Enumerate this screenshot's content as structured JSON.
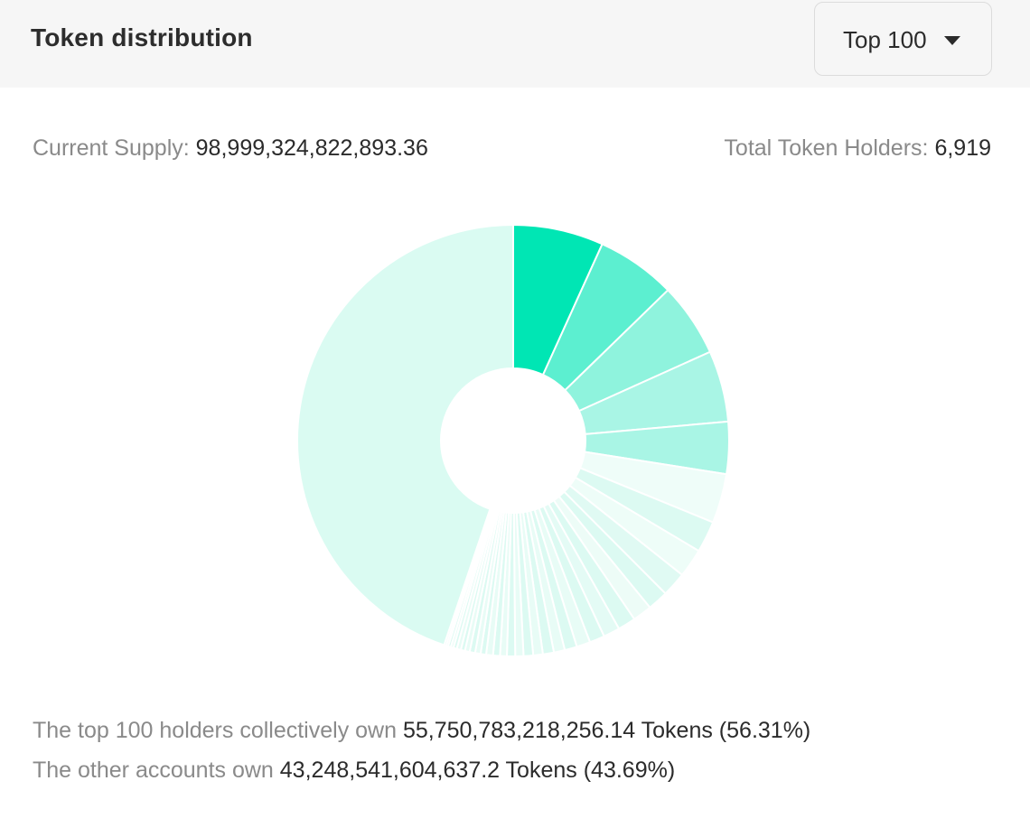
{
  "header": {
    "title": "Token distribution",
    "dropdown": {
      "selected": "Top 100",
      "caret_icon": "caret-down-icon"
    }
  },
  "stats": {
    "supply_label": "Current Supply:",
    "supply_value": "98,999,324,822,893.36",
    "holders_label": "Total Token Holders:",
    "holders_value": "6,919"
  },
  "chart_data": {
    "type": "pie",
    "variant": "donut",
    "labels_shown": false,
    "series": [
      {
        "values": [
          6.6,
          5.8,
          5.4,
          5.2,
          3.8,
          3.6,
          2.3,
          2.1,
          1.8,
          1.5,
          1.4,
          1.3,
          1.2,
          1.1,
          1.0,
          0.9,
          0.8,
          0.8,
          0.7,
          0.7,
          0.6,
          0.6,
          0.5,
          0.5,
          0.5,
          0.4,
          0.4,
          0.4,
          0.35,
          0.3,
          0.3,
          0.25,
          0.2,
          0.2,
          0.15,
          0.15,
          43.69
        ],
        "colors": [
          "#00e6b4",
          "#5cefd0",
          "#8ff3dd",
          "#a9f5e5",
          "#a9f5e5",
          "#effdf9",
          "#dcfaf2",
          "#eefdf8",
          "#e0faf3",
          "#dcfaf2",
          "#edfcf7",
          "#dcfaf2",
          "#e4fbf5",
          "#dcfaf2",
          "#e8fcf6",
          "#dcfaf2",
          "#e8fcf6",
          "#dcfaf2",
          "#e8fcf6",
          "#dcfaf2",
          "#e8fcf6",
          "#dcfaf2",
          "#e8fcf6",
          "#dcfaf2",
          "#e8fcf6",
          "#dcfaf2",
          "#e8fcf6",
          "#dcfaf2",
          "#e8fcf6",
          "#dcfaf2",
          "#e8fcf6",
          "#dcfaf2",
          "#e8fcf6",
          "#dcfaf2",
          "#e8fcf6",
          "#dcfaf2",
          "#dafbf2"
        ]
      }
    ]
  },
  "summary": {
    "line1_label": "The top 100 holders collectively own",
    "line1_value": "55,750,783,218,256.14 Tokens (56.31%)",
    "line2_label": "The other accounts own",
    "line2_value": "43,248,541,604,637.2 Tokens (43.69%)"
  }
}
